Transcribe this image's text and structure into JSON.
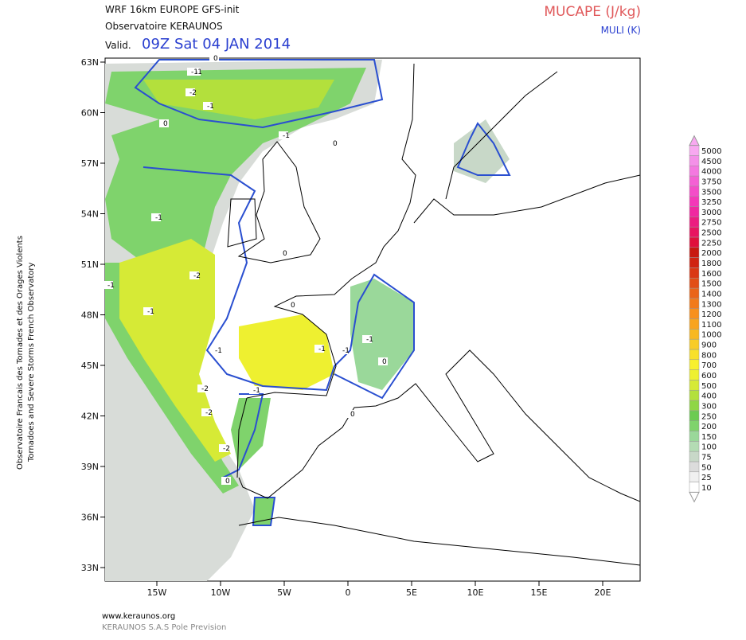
{
  "header": {
    "model": "WRF 16km EUROPE  GFS-init",
    "org": "Observatoire KERAUNOS",
    "valid_prefix": "Valid.",
    "valid_time": "09Z Sat 04 JAN 2014",
    "field": "MUCAPE (J/kg)",
    "contour_field": "MULI (K)"
  },
  "lat_labels": [
    "63N",
    "60N",
    "57N",
    "54N",
    "51N",
    "48N",
    "45N",
    "42N",
    "39N",
    "36N",
    "33N"
  ],
  "lon_labels": [
    "15W",
    "10W",
    "5W",
    "0",
    "5E",
    "10E",
    "15E",
    "20E"
  ],
  "colorbar": {
    "levels": [
      10,
      25,
      50,
      75,
      100,
      150,
      200,
      250,
      300,
      400,
      500,
      600,
      700,
      800,
      900,
      1000,
      1100,
      1200,
      1300,
      1400,
      1500,
      1600,
      1800,
      2000,
      2250,
      2500,
      2750,
      3000,
      3250,
      3500,
      3750,
      4000,
      4500,
      5000
    ],
    "colors": [
      "#ffffff",
      "#f0f0f0",
      "#dcdcdc",
      "#c8d8c8",
      "#b4dcb4",
      "#9ad89a",
      "#7fd36c",
      "#6ccb52",
      "#8fd645",
      "#b3e03c",
      "#d6ea36",
      "#eef030",
      "#f8f02e",
      "#f8e02a",
      "#f8cc26",
      "#f8b822",
      "#f8a41e",
      "#f8901c",
      "#f27a1a",
      "#ea6418",
      "#e24e16",
      "#da3814",
      "#d02412",
      "#c81810",
      "#e0103c",
      "#e81460",
      "#ec1c80",
      "#f028a0",
      "#f438b8",
      "#f44cc8",
      "#f460d4",
      "#f478e0",
      "#f490e8",
      "#f8a8f0"
    ]
  },
  "contour_labels": [
    "-1",
    "-2",
    "-1",
    "0",
    "0",
    "-1",
    "-1",
    "-1",
    "-2",
    "-1",
    "-1",
    "-1",
    "-2",
    "-1",
    "-1",
    "-2",
    "0",
    "0",
    "0",
    "-1",
    "0",
    "0",
    "0",
    "-1",
    "-2"
  ],
  "side_text": [
    "Observatoire Francais des Tornades et des Orages Violents",
    "Tornadoes and Severe Storms French Observatory"
  ],
  "footer": [
    "www.keraunos.org",
    "KERAUNOS S.A.S Pole Prevision"
  ]
}
